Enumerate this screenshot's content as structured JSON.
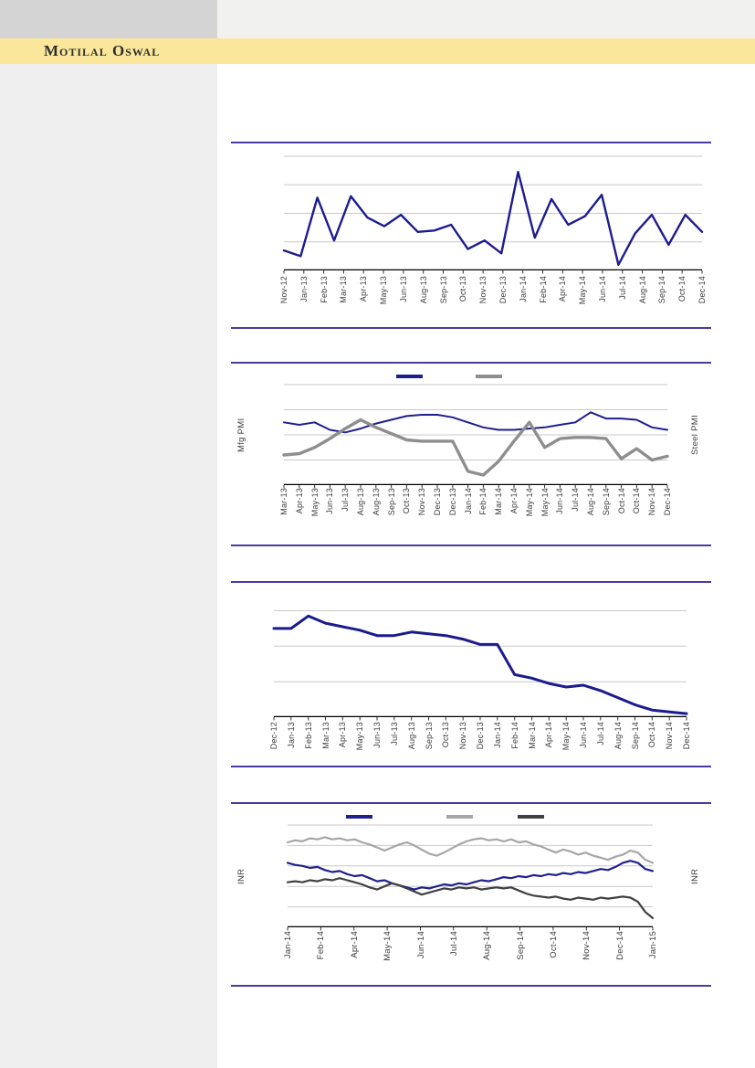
{
  "header": {
    "brand": "Motilal Oswal",
    "band_color": "#fae79b",
    "topleft_box_color": "#d4d4d4",
    "topright_band_color": "#f1f1f0"
  },
  "sidebar": {
    "color": "#efefef"
  },
  "colors": {
    "divider": "#473ca0",
    "gridline": "#c9c9c9",
    "axis": "#000000",
    "tick_text": "#3d3d3d",
    "navy": "#1c1c8f",
    "mid_gray": "#8e8e8e",
    "light_gray": "#a6a6a6",
    "dark_gray": "#404040"
  },
  "chart_data": [
    {
      "type": "line",
      "title": "",
      "x_tick_labels": [
        "Nov-12",
        "Jan-13",
        "Feb-13",
        "Mar-13",
        "Apr-13",
        "May-13",
        "Jun-13",
        "Aug-13",
        "Sep-13",
        "Oct-13",
        "Nov-13",
        "Dec-13",
        "Jan-14",
        "Feb-14",
        "Apr-14",
        "May-14",
        "Jun-14",
        "Jul-14",
        "Aug-14",
        "Sep-14",
        "Oct-14",
        "Dec-14"
      ],
      "ylim": [
        0,
        8
      ],
      "gridline_values": [
        2,
        4,
        6,
        8
      ],
      "legend_position": "none",
      "left_axis_label": "",
      "right_axis_label": "",
      "series": [
        {
          "name": "series-1",
          "color": "#1c1c8f",
          "width": 2.4,
          "values": [
            1.4,
            1.0,
            5.1,
            2.1,
            5.2,
            3.7,
            3.1,
            3.9,
            2.7,
            2.8,
            3.2,
            1.5,
            2.1,
            1.2,
            6.9,
            2.3,
            5.0,
            3.2,
            3.8,
            5.3,
            0.4,
            2.6,
            3.9,
            1.8,
            3.9,
            2.7
          ]
        }
      ]
    },
    {
      "type": "line",
      "title": "",
      "x_tick_labels": [
        "Mar-13",
        "Apr-13",
        "May-13",
        "Jun-13",
        "Jul-13",
        "Aug-13",
        "Aug-13",
        "Sep-13",
        "Oct-13",
        "Nov-13",
        "Dec-13",
        "Dec-13",
        "Jan-14",
        "Feb-14",
        "Mar-14",
        "Apr-14",
        "May-14",
        "May-14",
        "Jun-14",
        "Jul-14",
        "Aug-14",
        "Sep-14",
        "Oct-14",
        "Oct-14",
        "Nov-14",
        "Dec-14"
      ],
      "ylim": [
        0,
        8
      ],
      "gridline_values": [
        2,
        4,
        6,
        8
      ],
      "legend_position": "top",
      "left_axis_label": "Mfg PMI",
      "right_axis_label": "Steel PMI",
      "series": [
        {
          "name": "mfg-pmi",
          "color": "#1e1e8f",
          "width": 2,
          "values": [
            5.0,
            4.8,
            5.0,
            4.4,
            4.2,
            4.5,
            4.9,
            5.2,
            5.5,
            5.6,
            5.6,
            5.4,
            5.0,
            4.6,
            4.4,
            4.4,
            4.5,
            4.6,
            4.8,
            5.0,
            5.8,
            5.3,
            5.3,
            5.2,
            4.6,
            4.4
          ]
        },
        {
          "name": "steel-pmi",
          "color": "#8e8e8e",
          "width": 3.4,
          "values": [
            2.4,
            2.5,
            3.0,
            3.7,
            4.5,
            5.2,
            4.6,
            4.1,
            3.6,
            3.5,
            3.5,
            3.5,
            1.1,
            0.8,
            1.9,
            3.5,
            5.0,
            3.0,
            3.7,
            3.8,
            3.8,
            3.7,
            2.1,
            2.9,
            2.0,
            2.3
          ]
        }
      ]
    },
    {
      "type": "line",
      "title": "",
      "x_tick_labels": [
        "Dec-12",
        "Jan-13",
        "Feb-13",
        "Mar-13",
        "Apr-13",
        "May-13",
        "Jun-13",
        "Jul-13",
        "Aug-13",
        "Sep-13",
        "Oct-13",
        "Nov-13",
        "Dec-13",
        "Jan-14",
        "Feb-14",
        "Mar-14",
        "Apr-14",
        "May-14",
        "Jun-14",
        "Jul-14",
        "Aug-14",
        "Sep-14",
        "Oct-14",
        "Nov-14",
        "Dec-14"
      ],
      "ylim": [
        0,
        6.9
      ],
      "gridline_values": [
        2,
        4,
        6
      ],
      "legend_position": "none",
      "left_axis_label": "",
      "right_axis_label": "",
      "series": [
        {
          "name": "series-1",
          "color": "#1b1b8f",
          "width": 3,
          "values": [
            5.0,
            5.0,
            5.7,
            5.3,
            5.1,
            4.9,
            4.6,
            4.6,
            4.8,
            4.7,
            4.6,
            4.4,
            4.1,
            4.1,
            2.4,
            2.2,
            1.9,
            1.7,
            1.8,
            1.5,
            1.1,
            0.7,
            0.4,
            0.3,
            0.2
          ]
        }
      ]
    },
    {
      "type": "line",
      "title": "",
      "x_tick_labels": [
        "Jan-14",
        "Feb-14",
        "Apr-14",
        "May-14",
        "Jun-14",
        "Jul-14",
        "Aug-14",
        "Sep-14",
        "Oct-14",
        "Nov-14",
        "Dec-14",
        "Jan-15"
      ],
      "ylim": [
        0,
        10
      ],
      "gridline_values": [
        2,
        4,
        6,
        8,
        10
      ],
      "legend_position": "top",
      "left_axis_label": "INR",
      "right_axis_label": "INR",
      "series": [
        {
          "name": "series-navy",
          "color": "#20208f",
          "width": 2.2,
          "values": [
            6.3,
            6.1,
            6.0,
            5.8,
            5.9,
            5.6,
            5.4,
            5.5,
            5.2,
            5.0,
            5.1,
            4.8,
            4.5,
            4.6,
            4.3,
            4.1,
            3.9,
            3.7,
            3.9,
            3.8,
            4.0,
            4.2,
            4.1,
            4.3,
            4.2,
            4.4,
            4.6,
            4.5,
            4.7,
            4.9,
            4.8,
            5.0,
            4.9,
            5.1,
            5.0,
            5.2,
            5.1,
            5.3,
            5.2,
            5.4,
            5.3,
            5.5,
            5.7,
            5.6,
            5.9,
            6.3,
            6.5,
            6.3,
            5.7,
            5.5
          ]
        },
        {
          "name": "series-light-gray",
          "color": "#a6a6a6",
          "width": 2.2,
          "values": [
            8.3,
            8.5,
            8.4,
            8.7,
            8.6,
            8.8,
            8.6,
            8.7,
            8.5,
            8.6,
            8.3,
            8.1,
            7.8,
            7.5,
            7.8,
            8.1,
            8.3,
            8.0,
            7.6,
            7.2,
            7.0,
            7.3,
            7.7,
            8.1,
            8.4,
            8.6,
            8.7,
            8.5,
            8.6,
            8.4,
            8.6,
            8.3,
            8.4,
            8.1,
            7.9,
            7.6,
            7.3,
            7.6,
            7.4,
            7.1,
            7.3,
            7.0,
            6.8,
            6.6,
            6.9,
            7.1,
            7.5,
            7.3,
            6.6,
            6.3
          ]
        },
        {
          "name": "series-dark-gray",
          "color": "#404040",
          "width": 2.2,
          "values": [
            4.4,
            4.5,
            4.4,
            4.6,
            4.5,
            4.7,
            4.6,
            4.8,
            4.6,
            4.4,
            4.2,
            3.9,
            3.7,
            4.0,
            4.3,
            4.1,
            3.8,
            3.5,
            3.2,
            3.4,
            3.6,
            3.8,
            3.7,
            3.9,
            3.8,
            3.9,
            3.7,
            3.8,
            3.9,
            3.8,
            3.9,
            3.6,
            3.3,
            3.1,
            3.0,
            2.9,
            3.0,
            2.8,
            2.7,
            2.9,
            2.8,
            2.7,
            2.9,
            2.8,
            2.9,
            3.0,
            2.9,
            2.5,
            1.5,
            0.9
          ]
        }
      ]
    }
  ]
}
